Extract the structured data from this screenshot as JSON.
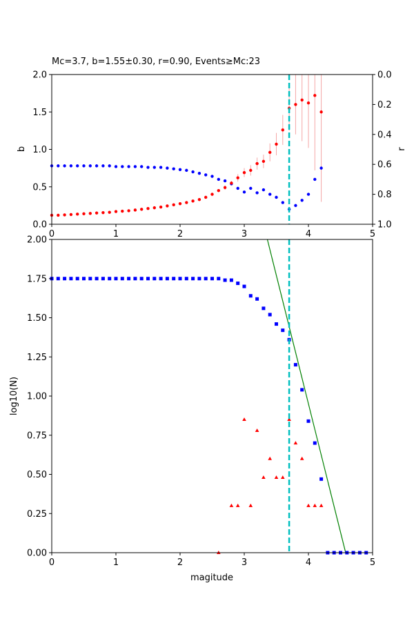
{
  "figure": {
    "title": "Mc=3.7, b=1.55±0.30, r=0.90, Events≥Mc:23"
  },
  "chart_data": [
    {
      "type": "scatter",
      "panel": "top",
      "title": "Mc=3.7, b=1.55±0.30, r=0.90, Events≥Mc:23",
      "xlabel": "",
      "ylabel": "b",
      "y2label": "r",
      "xlim": [
        0,
        5
      ],
      "ylim": [
        0,
        2
      ],
      "y2lim": [
        1.0,
        0.0
      ],
      "xticks": [
        "0",
        "1",
        "2",
        "3",
        "4",
        "5"
      ],
      "yticks": [
        "0.0",
        "0.5",
        "1.0",
        "1.5",
        "2.0"
      ],
      "y2ticks": [
        "0.0",
        "0.2",
        "0.4",
        "0.6",
        "0.8",
        "1.0"
      ],
      "mc_line": 3.7,
      "colors": {
        "b": "#ff0000",
        "r": "#0000ff",
        "mc": "#00bfbf",
        "err": "#f4a6a6"
      },
      "series": [
        {
          "axis": "left",
          "x": [
            0.0,
            0.1,
            0.2,
            0.3,
            0.4,
            0.5,
            0.6,
            0.7,
            0.8,
            0.9,
            1.0,
            1.1,
            1.2,
            1.3,
            1.4,
            1.5,
            1.6,
            1.7,
            1.8,
            1.9,
            2.0,
            2.1,
            2.2,
            2.3,
            2.4,
            2.5,
            2.6,
            2.7,
            2.8,
            2.9,
            3.0,
            3.1,
            3.2,
            3.3,
            3.4,
            3.5,
            3.6,
            3.7,
            3.8,
            3.9,
            4.0,
            4.1,
            4.2
          ],
          "values": [
            0.12,
            0.12,
            0.125,
            0.13,
            0.135,
            0.14,
            0.145,
            0.15,
            0.155,
            0.16,
            0.17,
            0.175,
            0.18,
            0.19,
            0.2,
            0.21,
            0.22,
            0.23,
            0.245,
            0.26,
            0.275,
            0.29,
            0.31,
            0.33,
            0.36,
            0.4,
            0.45,
            0.49,
            0.55,
            0.62,
            0.69,
            0.72,
            0.81,
            0.84,
            0.96,
            1.07,
            1.26,
            1.55,
            1.6,
            1.66,
            1.62,
            1.72,
            1.5
          ],
          "err": [
            0.01,
            0.01,
            0.01,
            0.01,
            0.01,
            0.01,
            0.01,
            0.01,
            0.01,
            0.01,
            0.01,
            0.01,
            0.01,
            0.01,
            0.01,
            0.01,
            0.01,
            0.01,
            0.01,
            0.01,
            0.015,
            0.015,
            0.015,
            0.02,
            0.02,
            0.02,
            0.02,
            0.03,
            0.03,
            0.05,
            0.06,
            0.07,
            0.08,
            0.09,
            0.12,
            0.15,
            0.2,
            0.3,
            0.4,
            0.55,
            0.6,
            1.0,
            1.2
          ]
        },
        {
          "axis": "right",
          "x": [
            0.0,
            0.1,
            0.2,
            0.3,
            0.4,
            0.5,
            0.6,
            0.7,
            0.8,
            0.9,
            1.0,
            1.1,
            1.2,
            1.3,
            1.4,
            1.5,
            1.6,
            1.7,
            1.8,
            1.9,
            2.0,
            2.1,
            2.2,
            2.3,
            2.4,
            2.5,
            2.6,
            2.7,
            2.8,
            2.9,
            3.0,
            3.1,
            3.2,
            3.3,
            3.4,
            3.5,
            3.6,
            3.7,
            3.8,
            3.9,
            4.0,
            4.1,
            4.2
          ],
          "values": [
            0.61,
            0.61,
            0.61,
            0.61,
            0.61,
            0.61,
            0.61,
            0.61,
            0.61,
            0.61,
            0.615,
            0.615,
            0.615,
            0.615,
            0.615,
            0.62,
            0.62,
            0.62,
            0.625,
            0.63,
            0.635,
            0.64,
            0.65,
            0.66,
            0.67,
            0.68,
            0.7,
            0.71,
            0.73,
            0.76,
            0.785,
            0.76,
            0.79,
            0.77,
            0.8,
            0.82,
            0.855,
            0.9,
            0.875,
            0.84,
            0.8,
            0.7,
            0.625
          ]
        }
      ]
    },
    {
      "type": "scatter",
      "panel": "bottom",
      "title": "",
      "xlabel": "magitude",
      "ylabel": "log10(N)",
      "xlim": [
        0,
        5
      ],
      "ylim": [
        0,
        2
      ],
      "xticks": [
        "0",
        "1",
        "2",
        "3",
        "4",
        "5"
      ],
      "yticks": [
        "0.00",
        "0.25",
        "0.50",
        "0.75",
        "1.00",
        "1.25",
        "1.50",
        "1.75",
        "2.00"
      ],
      "mc_line": 3.7,
      "fit_line": {
        "x": [
          3.36,
          4.58
        ],
        "y": [
          2.0,
          0.0
        ],
        "color": "#008000"
      },
      "colors": {
        "cumulative": "#0000ff",
        "noncumulative": "#ff0000",
        "mc": "#00bfbf"
      },
      "series": [
        {
          "marker": "square",
          "x": [
            0.0,
            0.1,
            0.2,
            0.3,
            0.4,
            0.5,
            0.6,
            0.7,
            0.8,
            0.9,
            1.0,
            1.1,
            1.2,
            1.3,
            1.4,
            1.5,
            1.6,
            1.7,
            1.8,
            1.9,
            2.0,
            2.1,
            2.2,
            2.3,
            2.4,
            2.5,
            2.6,
            2.7,
            2.8,
            2.9,
            3.0,
            3.1,
            3.2,
            3.3,
            3.4,
            3.5,
            3.6,
            3.7,
            3.8,
            3.9,
            4.0,
            4.1,
            4.2,
            4.3,
            4.4,
            4.5,
            4.6,
            4.7,
            4.8,
            4.9
          ],
          "values": [
            1.75,
            1.75,
            1.75,
            1.75,
            1.75,
            1.75,
            1.75,
            1.75,
            1.75,
            1.75,
            1.75,
            1.75,
            1.75,
            1.75,
            1.75,
            1.75,
            1.75,
            1.75,
            1.75,
            1.75,
            1.75,
            1.75,
            1.75,
            1.75,
            1.75,
            1.75,
            1.75,
            1.74,
            1.74,
            1.72,
            1.7,
            1.64,
            1.62,
            1.56,
            1.52,
            1.46,
            1.42,
            1.36,
            1.2,
            1.04,
            0.84,
            0.7,
            0.47,
            0.0,
            0.0,
            0.0,
            0.0,
            0.0,
            0.0,
            0.0
          ]
        },
        {
          "marker": "triangle",
          "x": [
            2.6,
            2.8,
            2.9,
            3.0,
            3.1,
            3.2,
            3.3,
            3.4,
            3.5,
            3.6,
            3.7,
            3.8,
            3.9,
            4.0,
            4.1,
            4.2
          ],
          "values": [
            0.0,
            0.3,
            0.3,
            0.85,
            0.3,
            0.78,
            0.48,
            0.6,
            0.48,
            0.48,
            0.85,
            0.7,
            0.6,
            0.3,
            0.3,
            0.3
          ]
        }
      ]
    }
  ]
}
